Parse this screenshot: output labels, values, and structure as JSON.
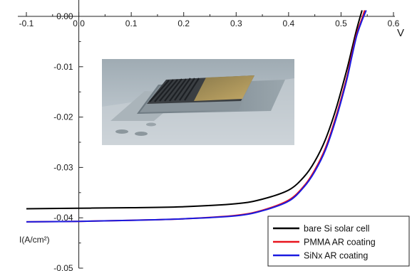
{
  "chart_data": {
    "type": "line",
    "xlim": [
      -0.1,
      0.6
    ],
    "ylim": [
      -0.05,
      0.0
    ],
    "x_ticks": [
      "-0.1",
      "0.0",
      "0.1",
      "0.2",
      "0.3",
      "0.4",
      "0.5",
      "0.6"
    ],
    "y_ticks": [
      "0.00",
      "-0.01",
      "-0.02",
      "-0.03",
      "-0.04",
      "-0.05"
    ],
    "x_unit": "V",
    "ylabel": "I(A/cm²)",
    "legend_position": "bottom-right",
    "inset_image": "solar-cell-photo",
    "series": [
      {
        "name": "bare Si solar cell",
        "color": "#000000",
        "points": [
          [
            -0.1,
            -0.0382
          ],
          [
            0.0,
            -0.0381
          ],
          [
            0.1,
            -0.038
          ],
          [
            0.2,
            -0.0378
          ],
          [
            0.3,
            -0.0372
          ],
          [
            0.35,
            -0.0363
          ],
          [
            0.4,
            -0.0345
          ],
          [
            0.43,
            -0.0318
          ],
          [
            0.45,
            -0.0288
          ],
          [
            0.47,
            -0.0245
          ],
          [
            0.49,
            -0.0185
          ],
          [
            0.51,
            -0.011
          ],
          [
            0.52,
            -0.0068
          ],
          [
            0.53,
            -0.0025
          ],
          [
            0.54,
            0.0012
          ]
        ]
      },
      {
        "name": "PMMA AR coating",
        "color": "#e8141e",
        "points": [
          [
            -0.1,
            -0.0408
          ],
          [
            0.0,
            -0.0407
          ],
          [
            0.1,
            -0.0405
          ],
          [
            0.2,
            -0.0402
          ],
          [
            0.3,
            -0.0395
          ],
          [
            0.35,
            -0.0385
          ],
          [
            0.4,
            -0.0365
          ],
          [
            0.43,
            -0.0336
          ],
          [
            0.45,
            -0.0305
          ],
          [
            0.47,
            -0.0262
          ],
          [
            0.49,
            -0.02
          ],
          [
            0.51,
            -0.0125
          ],
          [
            0.52,
            -0.0078
          ],
          [
            0.53,
            -0.0034
          ],
          [
            0.54,
            -0.0004
          ],
          [
            0.545,
            0.0012
          ]
        ]
      },
      {
        "name": "SiNx AR coating",
        "color": "#1a1ae0",
        "points": [
          [
            -0.1,
            -0.0408
          ],
          [
            0.0,
            -0.0407
          ],
          [
            0.1,
            -0.0405
          ],
          [
            0.2,
            -0.0402
          ],
          [
            0.3,
            -0.0396
          ],
          [
            0.35,
            -0.0386
          ],
          [
            0.4,
            -0.0367
          ],
          [
            0.43,
            -0.0338
          ],
          [
            0.45,
            -0.0308
          ],
          [
            0.47,
            -0.0266
          ],
          [
            0.49,
            -0.0205
          ],
          [
            0.51,
            -0.013
          ],
          [
            0.52,
            -0.0083
          ],
          [
            0.53,
            -0.0038
          ],
          [
            0.54,
            -0.0008
          ],
          [
            0.548,
            0.0012
          ]
        ]
      }
    ]
  }
}
